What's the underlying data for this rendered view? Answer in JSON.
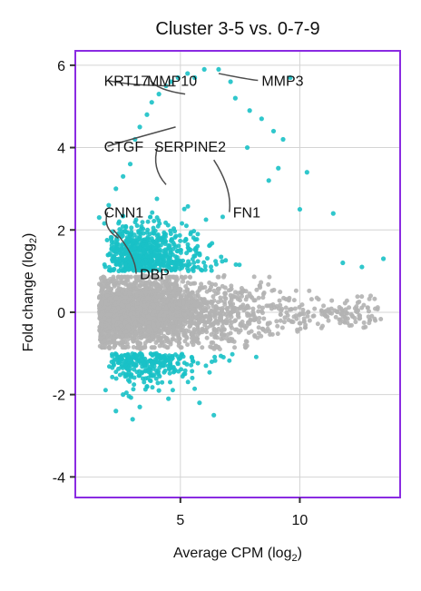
{
  "chart_data": {
    "type": "scatter",
    "title": "Cluster 3-5 vs. 0-7-9",
    "xlabel": "Average CPM (log",
    "xlabel_sub": "2",
    "xlabel_close": ")",
    "ylabel": "Fold change (log",
    "ylabel_sub": "2",
    "ylabel_close": ")",
    "xlim": [
      0.6,
      14.2
    ],
    "ylim": [
      -4.5,
      6.35
    ],
    "xticks": [
      5,
      10
    ],
    "yticks": [
      -4,
      -2,
      0,
      2,
      4,
      6
    ],
    "xtick_labels": [
      "5",
      "10"
    ],
    "ytick_labels": [
      "-4",
      "-2",
      "0",
      "2",
      "4",
      "6"
    ],
    "grid": true,
    "colors": {
      "nonsignificant": "#b3b3b3",
      "significant": "#19c1c6",
      "frame": "#8a2be2",
      "grid": "#d4d4d4",
      "connector": "#4d4d4d"
    },
    "series": [
      {
        "role": "nonsignificant",
        "x_range": [
          1.5,
          13.4
        ],
        "y_range": [
          -0.9,
          0.9
        ]
      },
      {
        "role": "significant",
        "points": [
          [
            1.6,
            2.3
          ],
          [
            2.0,
            2.6
          ],
          [
            2.3,
            3.0
          ],
          [
            2.6,
            3.3
          ],
          [
            2.9,
            3.6
          ],
          [
            3.1,
            4.2
          ],
          [
            3.3,
            4.5
          ],
          [
            3.6,
            4.8
          ],
          [
            3.8,
            5.1
          ],
          [
            4.1,
            5.3
          ],
          [
            4.4,
            5.5
          ],
          [
            4.6,
            5.6
          ],
          [
            4.9,
            5.7
          ],
          [
            5.3,
            5.8
          ],
          [
            5.6,
            5.7
          ],
          [
            6.0,
            5.9
          ],
          [
            6.6,
            5.9
          ],
          [
            7.1,
            5.6
          ],
          [
            7.3,
            5.2
          ],
          [
            7.9,
            4.9
          ],
          [
            8.4,
            4.7
          ],
          [
            8.9,
            4.4
          ],
          [
            9.3,
            4.2
          ],
          [
            9.6,
            5.7
          ],
          [
            9.1,
            3.5
          ],
          [
            8.7,
            3.2
          ],
          [
            7.8,
            4.0
          ],
          [
            10.3,
            3.4
          ],
          [
            11.4,
            2.4
          ],
          [
            13.5,
            1.3
          ],
          [
            12.6,
            1.1
          ],
          [
            11.8,
            1.2
          ],
          [
            10.0,
            2.5
          ],
          [
            2.6,
            -2.0
          ],
          [
            2.3,
            -2.4
          ],
          [
            3.0,
            -2.6
          ],
          [
            3.3,
            -2.3
          ],
          [
            4.5,
            -2.1
          ],
          [
            5.8,
            -2.2
          ],
          [
            6.4,
            -2.5
          ],
          [
            3.6,
            -1.8
          ],
          [
            4.1,
            -1.9
          ]
        ]
      }
    ],
    "annotations": [
      {
        "label": "KRT17",
        "x": 4.8,
        "y": 5.5,
        "label_x": 1.8,
        "label_y": 5.5
      },
      {
        "label": "MMP10",
        "x": 5.2,
        "y": 5.3,
        "label_x": 3.6,
        "label_y": 5.5
      },
      {
        "label": "MMP3",
        "x": 6.6,
        "y": 5.8,
        "label_x": 8.4,
        "label_y": 5.5
      },
      {
        "label": "CTGF",
        "x": 4.8,
        "y": 4.5,
        "label_x": 1.8,
        "label_y": 3.9
      },
      {
        "label": "SERPINE2",
        "x": 4.4,
        "y": 3.1,
        "label_x": 3.9,
        "label_y": 3.9
      },
      {
        "label": "FN1",
        "x": 6.4,
        "y": 3.7,
        "label_x": 7.2,
        "label_y": 2.3
      },
      {
        "label": "CNN1",
        "x": 2.4,
        "y": 1.8,
        "label_x": 1.8,
        "label_y": 2.3
      },
      {
        "label": "DBP",
        "x": 2.2,
        "y": 2.0,
        "label_x": 3.3,
        "label_y": 0.8
      }
    ]
  }
}
